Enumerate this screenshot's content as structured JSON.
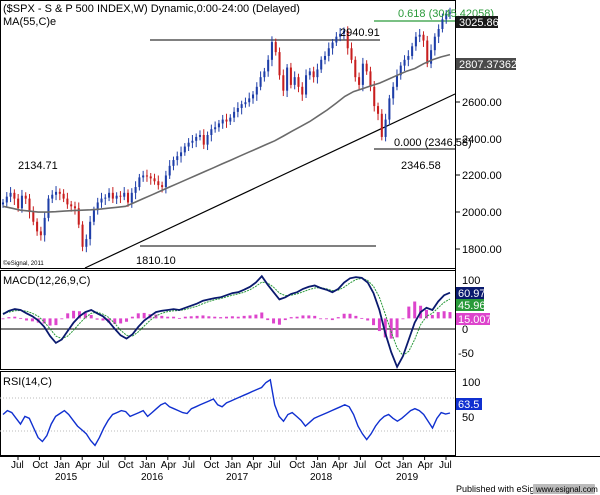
{
  "header": {
    "title": "($SPX - S & P 500 INDEX,W) Dynamic,0:00-24:00 (Delayed)",
    "ma_label": "MA(55,C)e",
    "copyright": "©eSignal, 2011"
  },
  "footer": {
    "published": "Published with eSignal",
    "website": "www.esignal.com"
  },
  "chart_data": [
    {
      "type": "candlestick",
      "panel": "price",
      "series": [
        {
          "name": "$SPX",
          "values": [
            2040,
            2070,
            2090,
            2060,
            2010,
            2075,
            2060,
            1990,
            1940,
            1890,
            1870,
            1960,
            2060,
            2080,
            2095,
            2085,
            2060,
            2030,
            2020,
            2010,
            1925,
            1810,
            1850,
            1940,
            2000,
            2040,
            2060,
            2065,
            2090,
            2060,
            2075,
            2070,
            2090,
            2040,
            2090,
            2120,
            2170,
            2180,
            2175,
            2165,
            2150,
            2130,
            2120,
            2180,
            2230,
            2260,
            2280,
            2300,
            2330,
            2350,
            2360,
            2380,
            2390,
            2340,
            2390,
            2420,
            2430,
            2450,
            2470,
            2460,
            2480,
            2510,
            2530,
            2550,
            2560,
            2580,
            2600,
            2640,
            2690,
            2720,
            2780,
            2872,
            2820,
            2700,
            2620,
            2740,
            2650,
            2690,
            2640,
            2600,
            2700,
            2720,
            2690,
            2730,
            2780,
            2800,
            2840,
            2870,
            2900,
            2915,
            2930,
            2840,
            2780,
            2690,
            2650,
            2760,
            2720,
            2640,
            2540,
            2500,
            2380,
            2470,
            2580,
            2640,
            2700,
            2750,
            2780,
            2800,
            2850,
            2900,
            2910,
            2880,
            2760,
            2830,
            2900,
            2940,
            2990,
            3020,
            3025.86
          ]
        },
        {
          "name": "MA(55,C)e",
          "values": [
            2020,
            2010,
            2000,
            1995,
            1990,
            1990,
            1992,
            1995,
            1998,
            2000,
            2002,
            2005,
            2010,
            2015,
            2020,
            2040,
            2060,
            2080,
            2100,
            2120,
            2140,
            2160,
            2180,
            2200,
            2220,
            2240,
            2260,
            2280,
            2300,
            2320,
            2340,
            2360,
            2385,
            2410,
            2435,
            2460,
            2490,
            2520,
            2555,
            2590,
            2615,
            2630,
            2645,
            2660,
            2680,
            2700,
            2720,
            2735,
            2760,
            2780,
            2795,
            2807.37
          ]
        }
      ],
      "price_labels": [
        "3025.86",
        "2807.37362"
      ],
      "y_ticks": [
        "2600.00",
        "2400.00",
        "2200.00",
        "2000.00",
        "1800.00"
      ],
      "annotations": [
        "2940.91",
        "2134.71",
        "1810.10",
        "0.618 (3045.42058)",
        "0.000 (2346.58)",
        "2346.58"
      ],
      "ylim": [
        1700,
        3080
      ]
    },
    {
      "type": "line",
      "panel": "macd",
      "title": "MACD(12,26,9,C)",
      "series": [
        {
          "name": "MACD",
          "values": [
            10,
            18,
            22,
            20,
            12,
            5,
            -5,
            -20,
            -42,
            -58,
            -50,
            -30,
            -10,
            5,
            15,
            20,
            12,
            5,
            -8,
            -25,
            -40,
            -48,
            -38,
            -20,
            -5,
            5,
            15,
            18,
            20,
            22,
            20,
            25,
            30,
            35,
            42,
            45,
            48,
            50,
            55,
            60,
            62,
            68,
            75,
            85,
            100,
            80,
            62,
            45,
            50,
            58,
            62,
            70,
            75,
            78,
            72,
            68,
            62,
            70,
            85,
            95,
            98,
            96,
            85,
            60,
            20,
            -35,
            -80,
            -115,
            -90,
            -50,
            -10,
            15,
            25,
            20,
            40,
            55,
            60.97
          ]
        },
        {
          "name": "Signal",
          "values": [
            12,
            15,
            18,
            19,
            17,
            12,
            5,
            -8,
            -25,
            -42,
            -48,
            -42,
            -28,
            -12,
            2,
            12,
            15,
            10,
            2,
            -12,
            -28,
            -40,
            -42,
            -32,
            -18,
            -5,
            6,
            12,
            16,
            18,
            19,
            21,
            25,
            29,
            35,
            40,
            44,
            47,
            51,
            55,
            58,
            62,
            68,
            76,
            86,
            84,
            74,
            60,
            54,
            55,
            58,
            63,
            68,
            72,
            73,
            70,
            66,
            67,
            74,
            84,
            92,
            95,
            90,
            76,
            50,
            10,
            -32,
            -70,
            -88,
            -78,
            -50,
            -15,
            5,
            12,
            25,
            38,
            45.96
          ]
        },
        {
          "name": "Histogram",
          "values": [
            -2,
            3,
            4,
            1,
            -5,
            -7,
            -10,
            -12,
            -17,
            -16,
            -2,
            12,
            18,
            17,
            13,
            8,
            -3,
            -5,
            -10,
            -13,
            -12,
            -8,
            4,
            12,
            13,
            10,
            9,
            6,
            4,
            4,
            1,
            4,
            5,
            6,
            7,
            5,
            4,
            3,
            4,
            5,
            4,
            6,
            7,
            9,
            14,
            -4,
            -12,
            -15,
            -4,
            3,
            4,
            7,
            7,
            6,
            -1,
            -2,
            -4,
            3,
            11,
            11,
            6,
            1,
            -5,
            -16,
            -30,
            -45,
            -48,
            -45,
            -2,
            28,
            40,
            30,
            20,
            8,
            15,
            17,
            15.007
          ]
        }
      ],
      "price_labels": [
        "60.97",
        "45.96",
        "15.007"
      ],
      "y_ticks": [
        "100",
        "50",
        "0",
        "-50"
      ],
      "ylim": [
        -120,
        110
      ]
    },
    {
      "type": "line",
      "panel": "rsi",
      "title": "RSI(14,C)",
      "series": [
        {
          "name": "RSI(14,C)",
          "values": [
            62,
            66,
            64,
            58,
            52,
            60,
            58,
            48,
            38,
            34,
            40,
            52,
            60,
            63,
            66,
            62,
            56,
            50,
            46,
            42,
            35,
            30,
            38,
            48,
            56,
            62,
            64,
            66,
            65,
            60,
            62,
            64,
            66,
            60,
            64,
            68,
            72,
            74,
            70,
            68,
            66,
            64,
            63,
            68,
            70,
            72,
            74,
            76,
            78,
            72,
            70,
            74,
            76,
            78,
            80,
            82,
            84,
            86,
            88,
            90,
            95,
            98,
            72,
            60,
            55,
            62,
            64,
            60,
            56,
            50,
            54,
            58,
            60,
            62,
            64,
            66,
            68,
            70,
            72,
            70,
            62,
            50,
            42,
            36,
            42,
            50,
            56,
            60,
            62,
            58,
            55,
            58,
            62,
            66,
            68,
            66,
            62,
            55,
            48,
            58,
            64,
            62.5,
            63.5
          ]
        }
      ],
      "price_labels": [
        "63.5"
      ],
      "y_ticks": [
        "100",
        "50"
      ],
      "ylim": [
        20,
        105
      ]
    }
  ],
  "x_axis": {
    "months": [
      "Jul",
      "Oct",
      "Jan",
      "Apr",
      "Jul",
      "Oct",
      "Jan",
      "Apr",
      "Jul",
      "Oct",
      "Jan",
      "Apr",
      "Jul",
      "Oct",
      "Jan",
      "Apr",
      "Jul",
      "Oct",
      "Jan",
      "Apr",
      "Jul"
    ],
    "years": [
      "2015",
      "2016",
      "2017",
      "2018",
      "2019"
    ]
  },
  "colors": {
    "price_label_bg": "#1a1a1a",
    "ma_label_bg": "#4a4a4a",
    "macd_line": "#0a1a6e",
    "signal_line": "#2a9a3a",
    "histogram": "#dd44cc",
    "rsi_line": "#1030d0",
    "fib_line": "#2a9a3a",
    "up_candle": "#1e3ea8",
    "down_candle": "#c81e1e"
  }
}
